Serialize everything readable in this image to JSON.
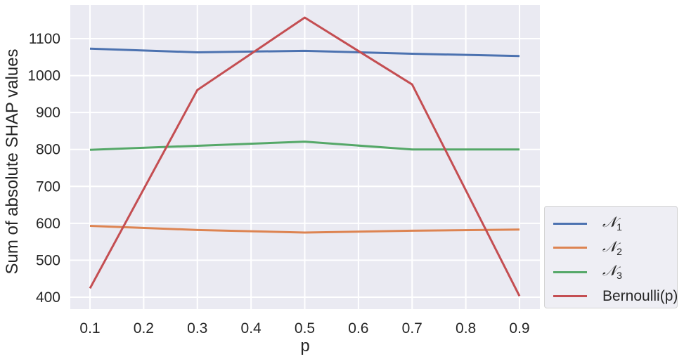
{
  "chart_data": {
    "type": "line",
    "title": "",
    "xlabel": "p",
    "ylabel": "Sum of absolute SHAP values",
    "x": [
      0.1,
      0.3,
      0.5,
      0.7,
      0.9
    ],
    "xticks": [
      "0.1",
      "0.2",
      "0.3",
      "0.4",
      "0.5",
      "0.6",
      "0.7",
      "0.8",
      "0.9"
    ],
    "yticks": [
      "400",
      "500",
      "600",
      "700",
      "800",
      "900",
      "1000",
      "1100"
    ],
    "xlim": [
      0.06,
      0.94
    ],
    "ylim": [
      365,
      1190
    ],
    "grid": true,
    "legend_position": "outside right, lower",
    "series": [
      {
        "name": "N_1",
        "label_math": "N",
        "label_sub": "1",
        "color": "#4c72b0",
        "values": [
          1073,
          1063,
          1067,
          1059,
          1053
        ]
      },
      {
        "name": "N_2",
        "label_math": "N",
        "label_sub": "2",
        "color": "#dd8452",
        "values": [
          593,
          582,
          575,
          580,
          583
        ]
      },
      {
        "name": "N_3",
        "label_math": "N",
        "label_sub": "3",
        "color": "#55a868",
        "values": [
          799,
          810,
          821,
          800,
          800
        ]
      },
      {
        "name": "Bernoulli(p)",
        "color": "#c44e52",
        "values": [
          424,
          961,
          1157,
          976,
          403
        ]
      }
    ]
  },
  "legend": {
    "items": [
      {
        "math": "𝒩",
        "sub": "1",
        "color": "#4c72b0"
      },
      {
        "math": "𝒩",
        "sub": "2",
        "color": "#dd8452"
      },
      {
        "math": "𝒩",
        "sub": "3",
        "color": "#55a868"
      },
      {
        "text": "Bernoulli(p)",
        "color": "#c44e52"
      }
    ]
  },
  "style": {
    "plot_bg": "#eaeaf2",
    "grid_color": "#ffffff"
  }
}
